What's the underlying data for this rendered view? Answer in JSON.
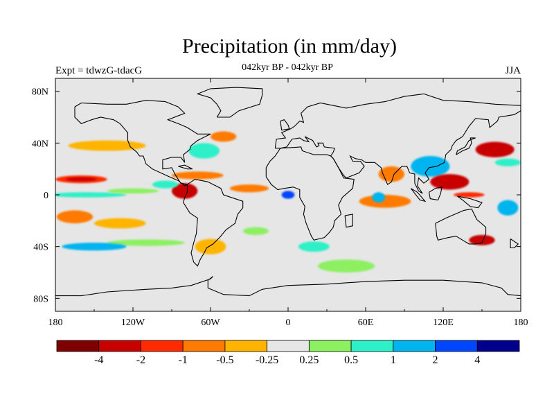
{
  "title": "Precipitation (in mm/day)",
  "subtitle": "042kyr BP - 042kyr BP",
  "left_label": "Expt = tdwzG-tdacG",
  "right_label": "JJA",
  "map": {
    "projection": "cylindrical-equidistant",
    "lon_range": [
      -180,
      180
    ],
    "lat_range": [
      -90,
      90
    ],
    "background_color": "#e6e6e6",
    "coastline_color": "#000000",
    "x_ticks": [
      {
        "lon": -180,
        "label": "180"
      },
      {
        "lon": -120,
        "label": "120W"
      },
      {
        "lon": -60,
        "label": "60W"
      },
      {
        "lon": 0,
        "label": "0"
      },
      {
        "lon": 60,
        "label": "60E"
      },
      {
        "lon": 120,
        "label": "120E"
      },
      {
        "lon": 180,
        "label": "180"
      }
    ],
    "y_ticks": [
      {
        "lat": 80,
        "label": "80N"
      },
      {
        "lat": 40,
        "label": "40N"
      },
      {
        "lat": 0,
        "label": "0"
      },
      {
        "lat": -40,
        "label": "40S"
      },
      {
        "lat": -80,
        "label": "80S"
      }
    ]
  },
  "colorbar": {
    "colors": [
      "#7f0000",
      "#c80000",
      "#ff2a00",
      "#ff7a00",
      "#ffb400",
      "#e6e6e6",
      "#8cf060",
      "#2ef0c8",
      "#00b4f0",
      "#0046ff",
      "#00008c"
    ],
    "labels": [
      "-4",
      "-2",
      "-1",
      "-0.5",
      "-0.25",
      "0.25",
      "0.5",
      "1",
      "2",
      "4"
    ]
  },
  "field_patches": [
    {
      "lon": -160,
      "lat": 12,
      "rx": 20,
      "ry": 3,
      "level": 2
    },
    {
      "lon": -160,
      "lat": 12,
      "rx": 12,
      "ry": 1.5,
      "level": 1
    },
    {
      "lon": -165,
      "lat": -17,
      "rx": 14,
      "ry": 5,
      "level": 3
    },
    {
      "lon": -130,
      "lat": -22,
      "rx": 20,
      "ry": 4,
      "level": 4
    },
    {
      "lon": -140,
      "lat": 38,
      "rx": 30,
      "ry": 4,
      "level": 4
    },
    {
      "lon": -155,
      "lat": 0,
      "rx": 30,
      "ry": 2,
      "level": 7
    },
    {
      "lon": -120,
      "lat": 3,
      "rx": 20,
      "ry": 2,
      "level": 6
    },
    {
      "lon": -80,
      "lat": 3,
      "rx": 10,
      "ry": 6,
      "level": 1
    },
    {
      "lon": -95,
      "lat": 8,
      "rx": 10,
      "ry": 3,
      "level": 7
    },
    {
      "lon": -70,
      "lat": 15,
      "rx": 20,
      "ry": 3,
      "level": 3
    },
    {
      "lon": -65,
      "lat": 34,
      "rx": 12,
      "ry": 6,
      "level": 7
    },
    {
      "lon": -50,
      "lat": 45,
      "rx": 10,
      "ry": 4,
      "level": 3
    },
    {
      "lon": -30,
      "lat": 5,
      "rx": 15,
      "ry": 3,
      "level": 3
    },
    {
      "lon": -25,
      "lat": -28,
      "rx": 10,
      "ry": 3,
      "level": 6
    },
    {
      "lon": -60,
      "lat": -40,
      "rx": 12,
      "ry": 6,
      "level": 4
    },
    {
      "lon": -110,
      "lat": -37,
      "rx": 30,
      "ry": 2.5,
      "level": 6
    },
    {
      "lon": -150,
      "lat": -40,
      "rx": 25,
      "ry": 3,
      "level": 8
    },
    {
      "lon": 0,
      "lat": 0,
      "rx": 5,
      "ry": 3,
      "level": 9
    },
    {
      "lon": 20,
      "lat": -40,
      "rx": 12,
      "ry": 4,
      "level": 7
    },
    {
      "lon": 45,
      "lat": -55,
      "rx": 22,
      "ry": 5,
      "level": 6
    },
    {
      "lon": 75,
      "lat": -5,
      "rx": 20,
      "ry": 5,
      "level": 3
    },
    {
      "lon": 70,
      "lat": -2,
      "rx": 5,
      "ry": 4,
      "level": 8
    },
    {
      "lon": 80,
      "lat": 16,
      "rx": 10,
      "ry": 6,
      "level": 3
    },
    {
      "lon": 110,
      "lat": 22,
      "rx": 15,
      "ry": 8,
      "level": 8
    },
    {
      "lon": 125,
      "lat": 10,
      "rx": 15,
      "ry": 6,
      "level": 1
    },
    {
      "lon": 160,
      "lat": 35,
      "rx": 15,
      "ry": 6,
      "level": 1
    },
    {
      "lon": 140,
      "lat": 0,
      "rx": 12,
      "ry": 2,
      "level": 2
    },
    {
      "lon": 150,
      "lat": -35,
      "rx": 10,
      "ry": 4,
      "level": 1
    },
    {
      "lon": 170,
      "lat": -10,
      "rx": 8,
      "ry": 6,
      "level": 8
    },
    {
      "lon": 170,
      "lat": 25,
      "rx": 10,
      "ry": 3,
      "level": 7
    }
  ]
}
